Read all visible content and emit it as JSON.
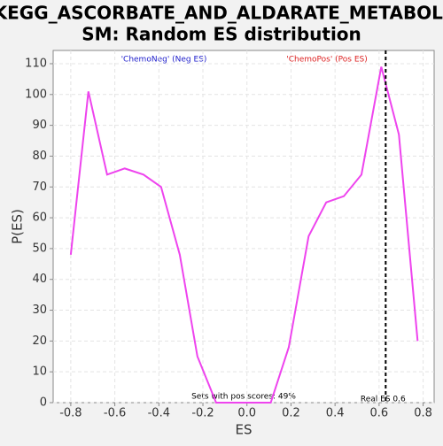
{
  "chart_data": {
    "type": "line",
    "title": [
      "KEGG_ASCORBATE_AND_ALDARATE_METABOLI",
      "SM: Random ES distribution"
    ],
    "xlabel": "ES",
    "ylabel": "P(ES)",
    "legend_neg": "'ChemoNeg' (Neg ES)",
    "legend_pos": "'ChemoPos' (Pos ES)",
    "pos_note": "Sets with pos scores: 49%",
    "real_es_label": "Real ES 0.6",
    "real_es": 0.63,
    "color": "#ee44ee",
    "grid": true,
    "x": [
      -0.8,
      -0.72,
      -0.635,
      -0.555,
      -0.47,
      -0.39,
      -0.305,
      -0.225,
      -0.14,
      -0.057,
      0.025,
      0.108,
      0.19,
      0.28,
      0.36,
      0.44,
      0.52,
      0.61,
      0.69,
      0.775
    ],
    "values": [
      48,
      101,
      74,
      76,
      74,
      70,
      48,
      15,
      0,
      0,
      0,
      0,
      18,
      54,
      65,
      67,
      74,
      109,
      87,
      20
    ],
    "xlim": [
      -0.88,
      0.85
    ],
    "ylim": [
      0,
      114.3
    ],
    "xticks": [
      -0.8,
      -0.6,
      -0.4,
      -0.2,
      {
        "value": 0,
        "label": "0.0"
      },
      0.2,
      0.4,
      0.6,
      0.8
    ],
    "yticks": [
      0,
      10,
      20,
      30,
      40,
      50,
      60,
      70,
      80,
      90,
      100,
      110
    ]
  }
}
